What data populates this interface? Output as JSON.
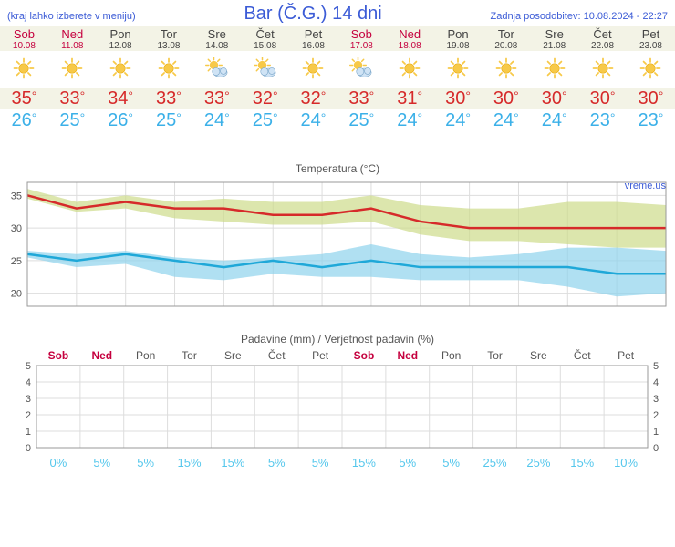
{
  "header": {
    "menu_note": "(kraj lahko izberete v meniju)",
    "title": "Bar (Č.G.) 14 dni",
    "updated_prefix": "Zadnja posodobitev: ",
    "updated_value": "10.08.2024 - 22:27"
  },
  "days": [
    {
      "name": "Sob",
      "date": "10.08",
      "weekend": true,
      "icon": "sun",
      "high": 35,
      "low": 26,
      "precip_prob": 0
    },
    {
      "name": "Ned",
      "date": "11.08",
      "weekend": true,
      "icon": "sun",
      "high": 33,
      "low": 25,
      "precip_prob": 5
    },
    {
      "name": "Pon",
      "date": "12.08",
      "weekend": false,
      "icon": "sun",
      "high": 34,
      "low": 26,
      "precip_prob": 5
    },
    {
      "name": "Tor",
      "date": "13.08",
      "weekend": false,
      "icon": "sun",
      "high": 33,
      "low": 25,
      "precip_prob": 15
    },
    {
      "name": "Sre",
      "date": "14.08",
      "weekend": false,
      "icon": "partly",
      "high": 33,
      "low": 24,
      "precip_prob": 15
    },
    {
      "name": "Čet",
      "date": "15.08",
      "weekend": false,
      "icon": "partly",
      "high": 32,
      "low": 25,
      "precip_prob": 5
    },
    {
      "name": "Pet",
      "date": "16.08",
      "weekend": false,
      "icon": "sun",
      "high": 32,
      "low": 24,
      "precip_prob": 5
    },
    {
      "name": "Sob",
      "date": "17.08",
      "weekend": true,
      "icon": "partly",
      "high": 33,
      "low": 25,
      "precip_prob": 15
    },
    {
      "name": "Ned",
      "date": "18.08",
      "weekend": true,
      "icon": "sun",
      "high": 31,
      "low": 24,
      "precip_prob": 5
    },
    {
      "name": "Pon",
      "date": "19.08",
      "weekend": false,
      "icon": "sun",
      "high": 30,
      "low": 24,
      "precip_prob": 5
    },
    {
      "name": "Tor",
      "date": "20.08",
      "weekend": false,
      "icon": "sun",
      "high": 30,
      "low": 24,
      "precip_prob": 25
    },
    {
      "name": "Sre",
      "date": "21.08",
      "weekend": false,
      "icon": "sun",
      "high": 30,
      "low": 24,
      "precip_prob": 25
    },
    {
      "name": "Čet",
      "date": "22.08",
      "weekend": false,
      "icon": "sun",
      "high": 30,
      "low": 23,
      "precip_prob": 15
    },
    {
      "name": "Pet",
      "date": "23.08",
      "weekend": false,
      "icon": "sun",
      "high": 30,
      "low": 23,
      "precip_prob": 10
    }
  ],
  "temp_chart": {
    "title": "Temperatura (°C)",
    "watermark": "vreme.us",
    "ymin": 18,
    "ymax": 37,
    "yticks": [
      20,
      25,
      30,
      35
    ],
    "high_series": [
      35,
      33,
      34,
      33,
      33,
      32,
      32,
      33,
      31,
      30,
      30,
      30,
      30,
      30
    ],
    "high_band_top": [
      36,
      34,
      35,
      34,
      34.5,
      34,
      34,
      35,
      33.5,
      33,
      33,
      34,
      34,
      33.5
    ],
    "high_band_bottom": [
      34.5,
      32.5,
      33,
      31.5,
      31,
      30.5,
      30.5,
      31,
      29,
      28,
      28,
      27.5,
      27,
      27
    ],
    "low_series": [
      26,
      25,
      26,
      25,
      24,
      25,
      24,
      25,
      24,
      24,
      24,
      24,
      23,
      23
    ],
    "low_band_top": [
      26.5,
      26,
      26.5,
      25.5,
      25,
      25.5,
      26,
      27.5,
      26,
      25.5,
      26,
      27,
      27,
      26.5
    ],
    "low_band_bottom": [
      25.5,
      24,
      24.5,
      22.5,
      22,
      23,
      22.5,
      22.5,
      22,
      22,
      22,
      21,
      19.5,
      20
    ],
    "colors": {
      "high_line": "#d62a2a",
      "high_band": "#cddc8a",
      "low_line": "#1fa8d8",
      "low_band": "#8ed3ec",
      "grid": "#dddddd",
      "axis": "#999999",
      "text": "#555555"
    },
    "line_width": 2.5
  },
  "precip_chart": {
    "title": "Padavine (mm) / Verjetnost padavin (%)",
    "ymin": 0,
    "ymax": 5,
    "yticks": [
      0,
      1,
      2,
      3,
      4,
      5
    ],
    "values": [
      0,
      0,
      0,
      0,
      0,
      0,
      0,
      0,
      0,
      0,
      0,
      0,
      0,
      0
    ],
    "colors": {
      "grid": "#dddddd",
      "axis": "#999999",
      "text": "#555555",
      "prob_text": "#55c7ec"
    }
  }
}
